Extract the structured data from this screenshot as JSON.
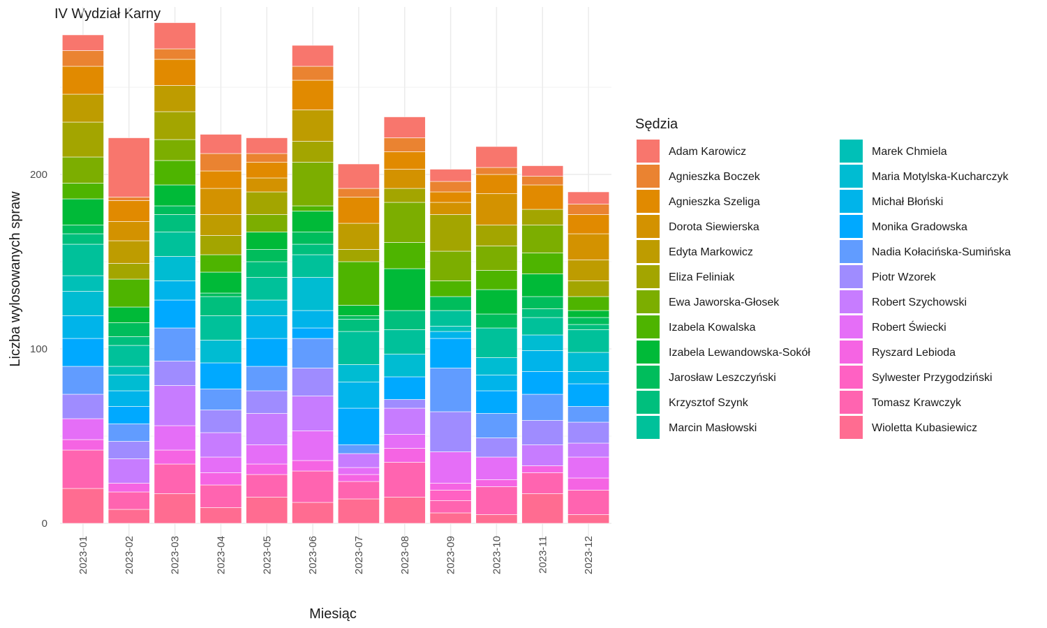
{
  "chart_data": {
    "type": "bar",
    "stacked": true,
    "title": "IV Wydział Karny",
    "xlabel": "Miesiąc",
    "ylabel": "Liczba wylosowanych spraw",
    "ylim": [
      0,
      285
    ],
    "yticks": [
      0,
      100,
      200
    ],
    "grid": true,
    "legend_title": "Sędzia",
    "legend_position": "right",
    "categories": [
      "2023-01",
      "2023-02",
      "2023-03",
      "2023-04",
      "2023-05",
      "2023-06",
      "2023-07",
      "2023-08",
      "2023-09",
      "2023-10",
      "2023-11",
      "2023-12"
    ],
    "series": [
      {
        "name": "Adam Karowicz",
        "color": "#F8766D",
        "values": [
          9,
          34,
          15,
          11,
          9,
          12,
          14,
          12,
          7,
          12,
          6,
          7
        ]
      },
      {
        "name": "Agnieszka Boczek",
        "color": "#EA8331",
        "values": [
          9,
          2,
          6,
          10,
          5,
          8,
          5,
          8,
          6,
          4,
          5,
          6
        ]
      },
      {
        "name": "Agnieszka Szeliga",
        "color": "#E18A00",
        "values": [
          16,
          12,
          15,
          10,
          9,
          17,
          15,
          10,
          6,
          11,
          14,
          11
        ]
      },
      {
        "name": "Dorota Siewierska",
        "color": "#D39200",
        "values": [
          0,
          11,
          0,
          15,
          8,
          0,
          0,
          11,
          7,
          18,
          0,
          15
        ]
      },
      {
        "name": "Edyta Markowicz",
        "color": "#BE9C00",
        "values": [
          16,
          13,
          15,
          12,
          0,
          18,
          15,
          0,
          0,
          0,
          0,
          12
        ]
      },
      {
        "name": "Eliza Feliniak",
        "color": "#A3A500",
        "values": [
          20,
          9,
          16,
          11,
          13,
          12,
          7,
          8,
          21,
          12,
          9,
          9
        ]
      },
      {
        "name": "Ewa Jaworska-Głosek",
        "color": "#7CAE00",
        "values": [
          15,
          0,
          12,
          0,
          10,
          25,
          0,
          23,
          17,
          14,
          16,
          0
        ]
      },
      {
        "name": "Izabela Kowalska",
        "color": "#4EB400",
        "values": [
          9,
          16,
          14,
          10,
          0,
          3,
          25,
          15,
          9,
          11,
          12,
          8
        ]
      },
      {
        "name": "Izabela Lewandowska-Sokół",
        "color": "#00BA38",
        "values": [
          15,
          9,
          12,
          12,
          10,
          12,
          6,
          24,
          0,
          14,
          13,
          4
        ]
      },
      {
        "name": "Jarosław Leszczyński",
        "color": "#00BD5C",
        "values": [
          5,
          8,
          5,
          2,
          7,
          7,
          2,
          0,
          8,
          8,
          7,
          4
        ]
      },
      {
        "name": "Krzysztof Szynk",
        "color": "#00BF7D",
        "values": [
          6,
          5,
          10,
          11,
          9,
          6,
          7,
          11,
          0,
          0,
          5,
          3
        ]
      },
      {
        "name": "Marcin Masłowski",
        "color": "#00C19A",
        "values": [
          18,
          12,
          14,
          14,
          13,
          13,
          19,
          14,
          9,
          17,
          10,
          13
        ]
      },
      {
        "name": "Marek Chmiela",
        "color": "#00C0B7",
        "values": [
          9,
          5,
          0,
          0,
          0,
          0,
          0,
          0,
          3,
          0,
          0,
          0
        ]
      },
      {
        "name": "Maria Motylska-Kucharczyk",
        "color": "#00BCD2",
        "values": [
          14,
          9,
          14,
          13,
          9,
          19,
          10,
          13,
          0,
          10,
          9,
          11
        ]
      },
      {
        "name": "Michał Błoński",
        "color": "#00B4EA",
        "values": [
          13,
          9,
          11,
          0,
          13,
          10,
          15,
          0,
          4,
          9,
          12,
          7
        ]
      },
      {
        "name": "Monika Gradowska",
        "color": "#00A9FF",
        "values": [
          16,
          10,
          16,
          15,
          16,
          6,
          21,
          13,
          17,
          13,
          13,
          13
        ]
      },
      {
        "name": "Nadia Kołacińska-Sumińska",
        "color": "#619CFF",
        "values": [
          16,
          10,
          19,
          12,
          14,
          17,
          5,
          0,
          25,
          14,
          15,
          9
        ]
      },
      {
        "name": "Piotr Wzorek",
        "color": "#9F8CFF",
        "values": [
          14,
          10,
          14,
          13,
          13,
          16,
          0,
          5,
          23,
          11,
          14,
          12
        ]
      },
      {
        "name": "Robert Szychowski",
        "color": "#C77CFF",
        "values": [
          0,
          14,
          23,
          14,
          18,
          20,
          8,
          15,
          0,
          0,
          12,
          8
        ]
      },
      {
        "name": "Robert Świecki",
        "color": "#E56EF7",
        "values": [
          12,
          0,
          14,
          9,
          11,
          17,
          4,
          8,
          18,
          13,
          0,
          12
        ]
      },
      {
        "name": "Ryszard Lebioda",
        "color": "#F564E3",
        "values": [
          6,
          5,
          8,
          7,
          6,
          6,
          4,
          8,
          4,
          4,
          4,
          7
        ]
      },
      {
        "name": "Sylwester Przygodziński",
        "color": "#FF61C3",
        "values": [
          0,
          0,
          0,
          0,
          0,
          0,
          0,
          0,
          6,
          0,
          0,
          0
        ]
      },
      {
        "name": "Tomasz Krawczyk",
        "color": "#FF64B0",
        "values": [
          22,
          10,
          17,
          13,
          13,
          18,
          10,
          20,
          7,
          16,
          12,
          14
        ]
      },
      {
        "name": "Wioletta Kubasiewicz",
        "color": "#FF6C91",
        "values": [
          20,
          8,
          17,
          9,
          15,
          12,
          14,
          15,
          6,
          5,
          17,
          5
        ]
      }
    ]
  }
}
